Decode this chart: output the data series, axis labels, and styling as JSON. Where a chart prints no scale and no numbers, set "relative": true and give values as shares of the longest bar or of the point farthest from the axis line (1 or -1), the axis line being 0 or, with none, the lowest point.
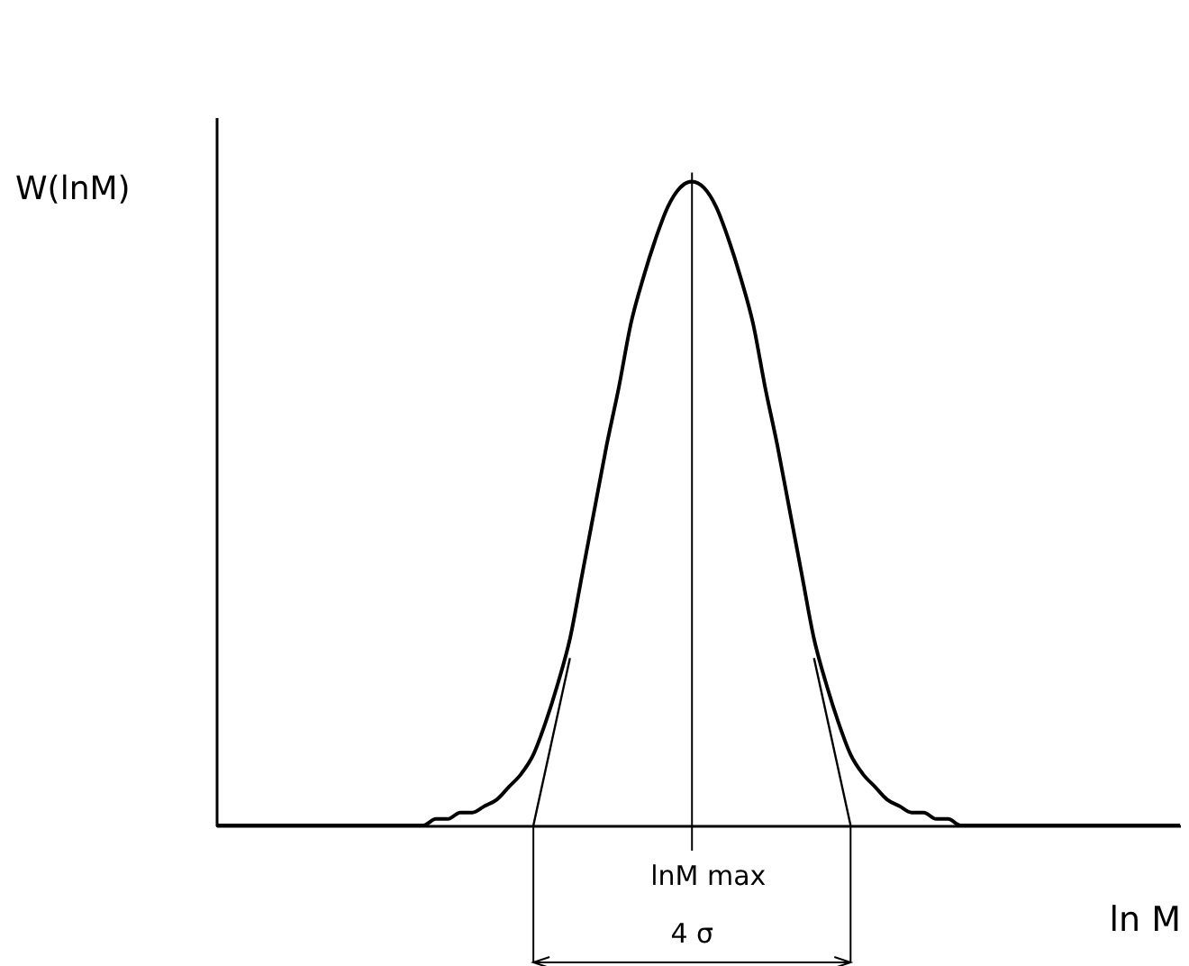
{
  "chart_data": {
    "type": "line",
    "relative": true,
    "xlabel": "ln M",
    "ylabel": "W(lnM)",
    "categories": [
      null,
      null,
      null,
      null,
      null,
      null,
      null,
      null,
      null,
      null,
      null,
      null,
      null,
      null,
      null,
      null,
      null,
      null,
      null,
      null,
      null,
      null,
      null,
      null,
      null,
      null,
      null,
      null,
      null,
      null,
      null,
      null,
      null,
      null,
      null,
      null,
      null,
      null,
      null,
      null,
      null,
      null,
      null,
      null,
      null,
      null,
      null,
      null,
      null,
      null,
      null,
      null,
      null,
      null,
      null,
      null,
      null,
      null,
      null,
      null,
      null,
      null,
      null,
      null,
      null,
      null,
      null,
      null,
      null,
      null,
      null,
      null,
      null,
      null,
      null,
      null,
      null,
      null,
      null,
      null
    ],
    "series": [
      {
        "color": "#000000",
        "values": [
          0,
          0,
          0,
          0,
          0,
          0,
          0,
          0,
          0,
          0,
          0,
          0,
          0,
          0,
          0,
          0,
          0,
          0,
          0.01,
          0.01,
          0.02,
          0.02,
          0.03,
          0.04,
          0.06,
          0.08,
          0.11,
          0.16,
          0.22,
          0.29,
          0.39,
          0.49,
          0.59,
          0.68,
          0.78,
          0.85,
          0.91,
          0.96,
          0.99,
          1,
          0.99,
          0.96,
          0.91,
          0.85,
          0.78,
          0.68,
          0.59,
          0.49,
          0.39,
          0.29,
          0.22,
          0.16,
          0.11,
          0.08,
          0.06,
          0.04,
          0.03,
          0.02,
          0.02,
          0.01,
          0.01,
          0,
          0,
          0,
          0,
          0,
          0,
          0,
          0,
          0,
          0,
          0,
          0,
          0,
          0,
          0,
          0,
          0,
          0,
          0
        ]
      },
      {
        "color": "#000000",
        "values": [
          null,
          null,
          null,
          null,
          null,
          null,
          null,
          null,
          null,
          null,
          null,
          null,
          null,
          null,
          null,
          null,
          null,
          null,
          null,
          null,
          null,
          null,
          null,
          null,
          null,
          null,
          0,
          null,
          null,
          0.26,
          null,
          null,
          null,
          null,
          null,
          null,
          null,
          null,
          null,
          null,
          null,
          null,
          null,
          null,
          null,
          null,
          null,
          null,
          null,
          null,
          null,
          null,
          null,
          null,
          null,
          null,
          null,
          null,
          null,
          null,
          null,
          null,
          null,
          null,
          null,
          null,
          null,
          null,
          null,
          null,
          null,
          null,
          null,
          null,
          null,
          null,
          null,
          null,
          null,
          null
        ]
      },
      {
        "color": "#000000",
        "values": [
          null,
          null,
          null,
          null,
          null,
          null,
          null,
          null,
          null,
          null,
          null,
          null,
          null,
          null,
          null,
          null,
          null,
          null,
          null,
          null,
          null,
          null,
          null,
          null,
          null,
          null,
          null,
          null,
          null,
          null,
          null,
          null,
          null,
          null,
          null,
          null,
          null,
          null,
          null,
          null,
          null,
          null,
          null,
          null,
          null,
          null,
          null,
          null,
          null,
          0.26,
          null,
          null,
          0,
          null,
          null,
          null,
          null,
          null,
          null,
          null,
          null,
          null,
          null,
          null,
          null,
          null,
          null,
          null,
          null,
          null,
          null,
          null,
          null,
          null,
          null,
          null,
          null,
          null,
          null,
          null
        ]
      }
    ],
    "annotations": [
      "lnM max",
      "4 σ"
    ]
  }
}
